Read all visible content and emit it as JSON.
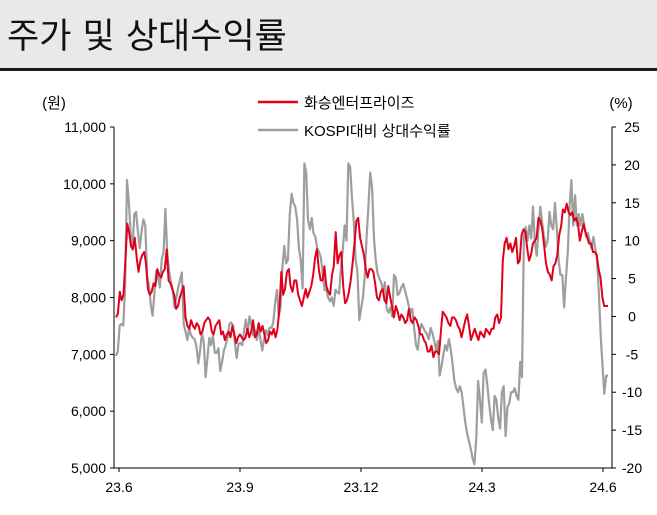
{
  "page": {
    "title": "주가 및 상대수익률"
  },
  "chart_data": {
    "type": "line",
    "left_unit": "(원)",
    "right_unit": "(%)",
    "x_ticks": [
      "23.6",
      "23.9",
      "23.12",
      "24.3",
      "24.6"
    ],
    "y_left": {
      "min": 5000,
      "max": 11000,
      "ticks": [
        "11,000",
        "10,000",
        "9,000",
        "8,000",
        "7,000",
        "6,000",
        "5,000"
      ]
    },
    "y_right": {
      "min": -20,
      "max": 25,
      "ticks": [
        "25",
        "20",
        "15",
        "10",
        "5",
        "0",
        "-5",
        "-10",
        "-15",
        "-20"
      ]
    },
    "legend": [
      "화승엔터프라이즈",
      "KOSPI대비 상대수익률"
    ],
    "colors": {
      "price": "#e0001b",
      "relative": "#9e9e9e",
      "axis": "#000000"
    },
    "series": [
      {
        "name": "화승엔터프라이즈",
        "axis": "left",
        "values": [
          7650,
          7720,
          8100,
          7950,
          8050,
          8650,
          9300,
          9150,
          8900,
          8850,
          9050,
          8700,
          8450,
          8650,
          8750,
          8800,
          8600,
          8150,
          8050,
          8100,
          8250,
          8200,
          8500,
          8400,
          8350,
          8450,
          8500,
          8850,
          8300,
          8250,
          8150,
          8050,
          7800,
          7850,
          8000,
          8100,
          8200,
          7650,
          7500,
          7450,
          7600,
          7500,
          7450,
          7550,
          7500,
          7350,
          7400,
          7550,
          7600,
          7650,
          7600,
          7400,
          7350,
          7500,
          7550,
          7600,
          7350,
          7400,
          7250,
          7350,
          7400,
          7300,
          7500,
          7350,
          7200,
          7300,
          7350,
          7300,
          7250,
          7300,
          7450,
          7300,
          7400,
          7600,
          7300,
          7350,
          7550,
          7400,
          7500,
          7350,
          7200,
          7250,
          7400,
          7350,
          7450,
          7300,
          7450,
          7800,
          8450,
          8050,
          8150,
          8450,
          8500,
          8200,
          8100,
          8300,
          8300,
          8050,
          7950,
          7850,
          8000,
          8150,
          8000,
          8100,
          8200,
          8400,
          8700,
          8850,
          8500,
          8300,
          8300,
          8550,
          8200,
          8100,
          8050,
          8400,
          8550,
          9150,
          8600,
          8750,
          8800,
          8200,
          7900,
          7950,
          8100,
          8300,
          8600,
          8950,
          9350,
          9400,
          9050,
          8900,
          8750,
          8500,
          8350,
          8500,
          8500,
          8450,
          8250,
          8000,
          7950,
          8100,
          8150,
          7950,
          7900,
          8200,
          8000,
          7850,
          7650,
          7850,
          7750,
          7600,
          7700,
          7650,
          7550,
          7600,
          7800,
          7600,
          7550,
          7650,
          7600,
          7500,
          7350,
          7350,
          7250,
          7200,
          7050,
          7050,
          7150,
          6950,
          7050,
          7050,
          7000,
          7400,
          7750,
          7700,
          7650,
          7550,
          7500,
          7650,
          7650,
          7600,
          7500,
          7450,
          7300,
          7450,
          7600,
          7700,
          7500,
          7250,
          7350,
          7450,
          7350,
          7250,
          7400,
          7350,
          7300,
          7450,
          7400,
          7350,
          7450,
          7450,
          7650,
          7700,
          7550,
          7650,
          8650,
          8950,
          9050,
          8850,
          8950,
          8800,
          8900,
          9050,
          8600,
          8650,
          9100,
          9200,
          9150,
          8850,
          8650,
          8750,
          8950,
          9000,
          9050,
          9400,
          9350,
          9200,
          8900,
          8600,
          8450,
          8400,
          8300,
          8550,
          8600,
          8750,
          9100,
          9250,
          9550,
          9500,
          9650,
          9500,
          9450,
          9500,
          9350,
          9400,
          9300,
          9000,
          9150,
          9300,
          9150,
          9050,
          8950,
          8950,
          8800,
          8800,
          8750,
          8500,
          8350,
          8000,
          7850,
          7850,
          7850
        ]
      },
      {
        "name": "KOSPI대비 상대수익률",
        "axis": "right",
        "values": [
          -5.2,
          -4.6,
          -1.2,
          -1.0,
          -1.2,
          4.0,
          18.0,
          15.2,
          11.2,
          8.8,
          13.5,
          13.8,
          11.2,
          9.0,
          11.3,
          12.8,
          12.0,
          5.3,
          4.2,
          1.5,
          0.1,
          3.0,
          6.0,
          5.2,
          3.8,
          7.5,
          8.5,
          14.2,
          8.5,
          6.2,
          4.5,
          3.5,
          1.2,
          2.5,
          3.8,
          4.8,
          5.8,
          -1.0,
          -2.0,
          -3.1,
          -1.5,
          -2.5,
          -2.8,
          -3.0,
          -4.0,
          -6.2,
          -4.5,
          -2.2,
          -3.5,
          -8.0,
          -5.5,
          -2.8,
          -3.8,
          -2.5,
          -4.8,
          -4.8,
          -4.2,
          -7.2,
          -6.0,
          -4.5,
          -3.8,
          -2.8,
          -1.0,
          -0.8,
          -1.2,
          -3.5,
          -5.5,
          -3.6,
          -3.5,
          -3.8,
          -2.0,
          -0.4,
          -2.3,
          0.0,
          -1.0,
          -2.5,
          -1.8,
          -3.1,
          -1.5,
          -3.1,
          -4.5,
          -3.0,
          -1.8,
          -2.5,
          -1.5,
          -1.5,
          -0.8,
          1.8,
          3.5,
          0.0,
          1.4,
          6.5,
          9.3,
          7.0,
          7.5,
          13.5,
          16.2,
          15.0,
          14.5,
          12.8,
          9.0,
          7.5,
          3.7,
          20.2,
          19.0,
          12.8,
          11.5,
          13.0,
          11.0,
          10.5,
          9.0,
          8.5,
          7.8,
          5.8,
          3.5,
          3.5,
          2.5,
          2.0,
          2.5,
          1.4,
          3.5,
          3.2,
          3.0,
          6.5,
          8.8,
          12.0,
          10.0,
          20.2,
          19.8,
          15.8,
          12.5,
          7.5,
          6.0,
          -0.5,
          1.0,
          2.5,
          5.2,
          10.5,
          14.5,
          19.0,
          17.0,
          10.5,
          7.5,
          5.7,
          5.0,
          4.5,
          3.3,
          4.5,
          1.0,
          0.5,
          1.2,
          0.0,
          5.5,
          5.1,
          2.8,
          3.1,
          3.8,
          4.3,
          3.4,
          2.5,
          1.5,
          0.5,
          1.0,
          -1.5,
          -3.8,
          -4.4,
          -2.0,
          -1.0,
          -1.5,
          -2.0,
          -2.3,
          -3.0,
          -1.5,
          -2.2,
          -3.2,
          -4.5,
          -3.2,
          -7.8,
          -6.5,
          -5.0,
          -3.8,
          -4.5,
          -3.0,
          -4.3,
          -6.2,
          -8.5,
          -9.5,
          -10.0,
          -9.2,
          -10.0,
          -12.0,
          -14.0,
          -15.5,
          -16.5,
          -17.5,
          -18.8,
          -19.5,
          -16.0,
          -8.5,
          -11.0,
          -14.0,
          -7.5,
          -7.0,
          -9.0,
          -11.5,
          -13.5,
          -15.0,
          -10.5,
          -11.0,
          -13.5,
          -14.8,
          -10.0,
          -9.2,
          -15.8,
          -12.0,
          -11.5,
          -10.0,
          -10.0,
          -9.5,
          -10.5,
          -11.0,
          -6.0,
          -8.0,
          10.5,
          11.8,
          10.0,
          12.0,
          10.3,
          14.5,
          10.0,
          8.0,
          11.6,
          14.5,
          12.3,
          10.5,
          9.2,
          10.0,
          13.8,
          12.0,
          11.5,
          15.0,
          11.5,
          7.5,
          5.5,
          5.5,
          1.2,
          5.0,
          8.5,
          14.5,
          18.0,
          12.0,
          16.0,
          12.0,
          13.5,
          12.0,
          13.5,
          12.0,
          10.5,
          11.0,
          10.0,
          9.0,
          10.5,
          9.0,
          7.5,
          3.0,
          -2.5,
          -6.5,
          -10.2,
          -7.8,
          -7.8
        ]
      }
    ]
  }
}
